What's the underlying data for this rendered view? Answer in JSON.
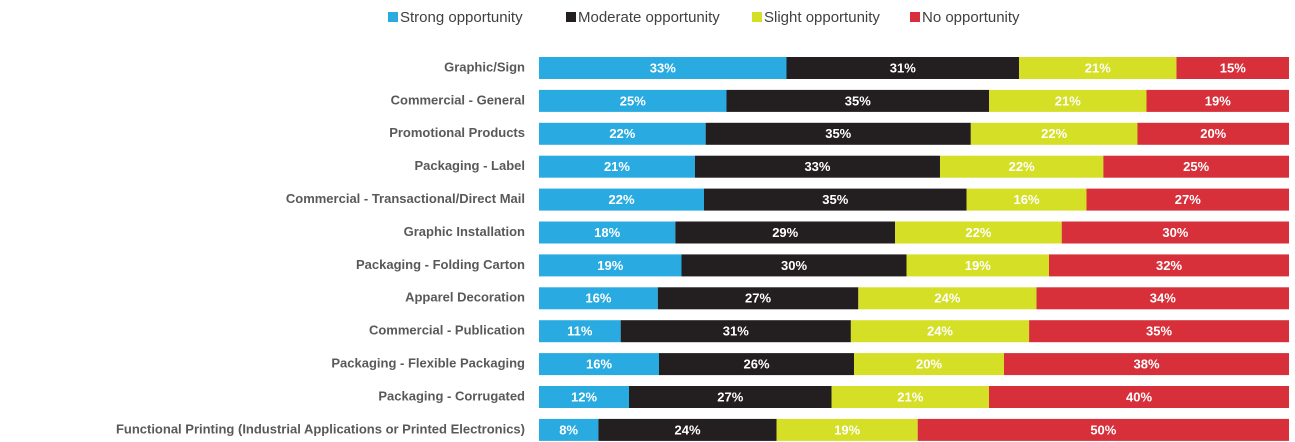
{
  "chart_data": {
    "type": "stacked_bar_horizontal",
    "categories": [
      "Graphic/Sign",
      "Commercial - General",
      "Promotional Products",
      "Packaging - Label",
      "Commercial - Transactional/Direct Mail",
      "Graphic Installation",
      "Packaging -  Folding Carton",
      "Apparel Decoration",
      "Commercial - Publication",
      "Packaging - Flexible Packaging",
      "Packaging - Corrugated",
      "Functional Printing (Industrial Applications or Printed Electronics)"
    ],
    "series": [
      {
        "name": "Strong opportunity",
        "color": "#29abe2",
        "values": [
          33,
          25,
          22,
          21,
          22,
          18,
          19,
          16,
          11,
          16,
          12,
          8
        ],
        "value_labels": [
          "33%",
          "25%",
          "22%",
          "21%",
          "22%",
          "18%",
          "19%",
          "16%",
          "11%",
          "16%",
          "12%",
          "8%"
        ]
      },
      {
        "name": "Moderate opportunity",
        "color": "#231f20",
        "values": [
          31,
          35,
          35,
          33,
          35,
          29,
          30,
          27,
          31,
          26,
          27,
          24
        ],
        "value_labels": [
          "31%",
          "35%",
          "35%",
          "33%",
          "35%",
          "29%",
          "30%",
          "27%",
          "31%",
          "26%",
          "27%",
          "24%"
        ]
      },
      {
        "name": "Slight opportunity",
        "color": "#d4df26",
        "values": [
          21,
          21,
          22,
          22,
          16,
          22,
          19,
          24,
          24,
          20,
          21,
          19
        ],
        "value_labels": [
          "21%",
          "21%",
          "22%",
          "22%",
          "16%",
          "22%",
          "19%",
          "24%",
          "24%",
          "20%",
          "21%",
          "19%"
        ]
      },
      {
        "name": "No opportunity",
        "color": "#d7303a",
        "values": [
          15,
          19,
          20,
          25,
          27,
          30,
          32,
          34,
          35,
          38,
          40,
          50
        ],
        "value_labels": [
          "15%",
          "19%",
          "20%",
          "25%",
          "27%",
          "30%",
          "32%",
          "34%",
          "35%",
          "38%",
          "40%",
          "50%"
        ]
      }
    ],
    "legend": "top"
  }
}
